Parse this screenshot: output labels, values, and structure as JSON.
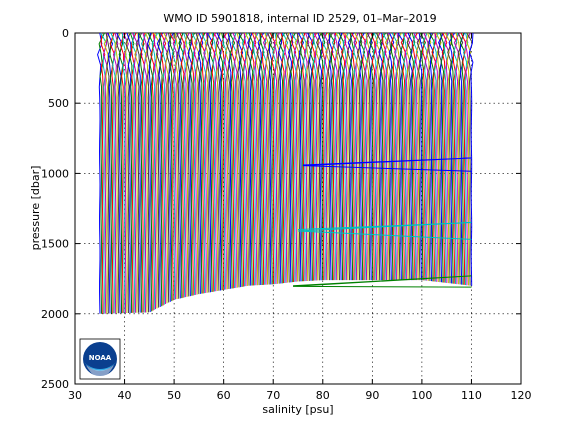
{
  "chart_data": {
    "type": "line",
    "title": "WMO ID 5901818, internal ID 2529, 01–Mar–2019",
    "xlabel": "salinity [psu]",
    "ylabel": "pressure [dbar]",
    "xlim": [
      30,
      120
    ],
    "ylim": [
      0,
      2500
    ],
    "y_reversed": true,
    "grid": true,
    "xticks": [
      30,
      40,
      50,
      60,
      70,
      80,
      90,
      100,
      110,
      120
    ],
    "yticks": [
      0,
      500,
      1000,
      1500,
      2000,
      2500
    ],
    "logo": "NOAA",
    "profile_colors": [
      "#0000ff",
      "#008000",
      "#ff0000",
      "#00bfbf",
      "#bf00bf",
      "#bfbf00",
      "#404040"
    ],
    "profile_x_range": [
      35,
      110
    ],
    "profile_count": 260,
    "bottom_envelope": [
      {
        "x": 35,
        "y": 2000
      },
      {
        "x": 45,
        "y": 1990
      },
      {
        "x": 50,
        "y": 1900
      },
      {
        "x": 55,
        "y": 1860
      },
      {
        "x": 60,
        "y": 1830
      },
      {
        "x": 65,
        "y": 1800
      },
      {
        "x": 70,
        "y": 1790
      },
      {
        "x": 75,
        "y": 1770
      },
      {
        "x": 80,
        "y": 1760
      },
      {
        "x": 90,
        "y": 1760
      },
      {
        "x": 100,
        "y": 1760
      },
      {
        "x": 110,
        "y": 1800
      }
    ],
    "highlighted_series": [
      {
        "color": "#0000ff",
        "points": [
          {
            "x": 76,
            "y": 940
          },
          {
            "x": 110,
            "y": 890
          },
          {
            "x": 76,
            "y": 945
          },
          {
            "x": 110,
            "y": 985
          }
        ]
      },
      {
        "color": "#00bfbf",
        "points": [
          {
            "x": 75,
            "y": 1400
          },
          {
            "x": 110,
            "y": 1350
          },
          {
            "x": 75,
            "y": 1410
          },
          {
            "x": 110,
            "y": 1470
          }
        ]
      },
      {
        "color": "#008000",
        "points": [
          {
            "x": 74,
            "y": 1800
          },
          {
            "x": 110,
            "y": 1730
          },
          {
            "x": 74,
            "y": 1805
          },
          {
            "x": 110,
            "y": 1810
          }
        ]
      }
    ]
  }
}
